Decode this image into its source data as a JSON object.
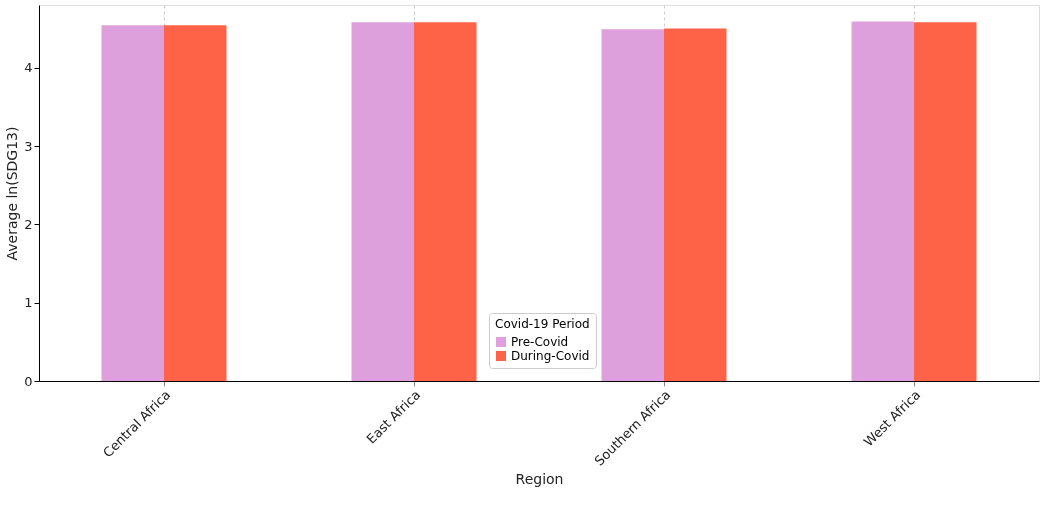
{
  "chart_data": {
    "type": "bar",
    "xlabel": "Region",
    "ylabel": "Average ln(SDG13)",
    "legend_title": "Covid-19 Period",
    "categories": [
      "Central Africa",
      "East Africa",
      "Southern Africa",
      "West Africa"
    ],
    "series": [
      {
        "name": "Pre-Covid",
        "color": "#dda0dd",
        "values": [
          4.54,
          4.58,
          4.49,
          4.59
        ]
      },
      {
        "name": "During-Covid",
        "color": "#ff6347",
        "values": [
          4.54,
          4.58,
          4.5,
          4.58
        ]
      }
    ],
    "ylim": [
      0,
      4.8
    ],
    "yticks": [
      0,
      1,
      2,
      3,
      4
    ],
    "grid": "x",
    "legend": "bottom"
  }
}
